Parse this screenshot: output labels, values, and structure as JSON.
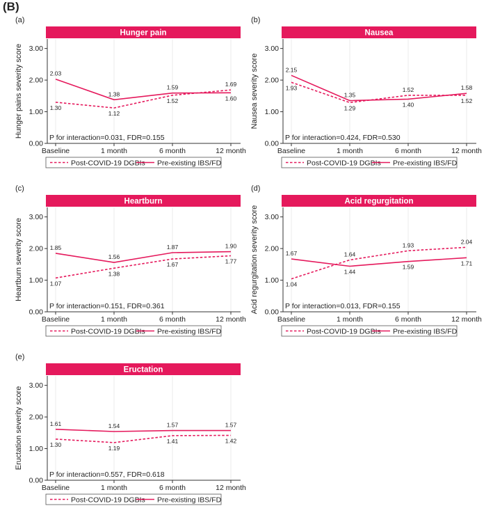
{
  "figure_label": "(B)",
  "legend": {
    "series1": "Post-COVID-19 DGBIs",
    "series2": "Pre-existing IBS/FD"
  },
  "colors": {
    "accent": "#e5195c",
    "grid": "#e6e6e6",
    "axis": "#333333"
  },
  "chart_data": [
    {
      "type": "line",
      "panel": "(a)",
      "title": "Hunger pain",
      "ylabel": "Hunger pains severity score",
      "categories": [
        "Baseline",
        "1 month",
        "6 month",
        "12 month"
      ],
      "yticks": [
        "0.00",
        "1.00",
        "2.00",
        "3.00"
      ],
      "ylim": [
        0,
        3.3
      ],
      "series": [
        {
          "name": "Post-COVID-19 DGBIs",
          "style": "dashed",
          "values": [
            1.3,
            1.12,
            1.52,
            1.69
          ],
          "labels": [
            "1.30",
            "1.12",
            "1.52",
            "1.69"
          ]
        },
        {
          "name": "Pre-existing IBS/FD",
          "style": "solid",
          "values": [
            2.03,
            1.38,
            1.59,
            1.6
          ],
          "labels": [
            "2.03",
            "1.38",
            "1.59",
            "1.60"
          ]
        }
      ],
      "annotation": "P for interaction=0.031, FDR=0.155"
    },
    {
      "type": "line",
      "panel": "(b)",
      "title": "Nausea",
      "ylabel": "Nausea severity score",
      "categories": [
        "Baseline",
        "1 month",
        "6 month",
        "12 month"
      ],
      "yticks": [
        "0.00",
        "1.00",
        "2.00",
        "3.00"
      ],
      "ylim": [
        0,
        3.3
      ],
      "series": [
        {
          "name": "Post-COVID-19 DGBIs",
          "style": "dashed",
          "values": [
            1.93,
            1.29,
            1.52,
            1.52
          ],
          "labels": [
            "1.93",
            "1.29",
            "1.52",
            "1.52"
          ]
        },
        {
          "name": "Pre-existing IBS/FD",
          "style": "solid",
          "values": [
            2.15,
            1.35,
            1.4,
            1.58
          ],
          "labels": [
            "2.15",
            "1.35",
            "1.40",
            "1.58"
          ]
        }
      ],
      "annotation": "P for interaction=0.424, FDR=0.530"
    },
    {
      "type": "line",
      "panel": "(c)",
      "title": "Heartburn",
      "ylabel": "Heartburn severity score",
      "categories": [
        "Baseline",
        "1 month",
        "6 month",
        "12 month"
      ],
      "yticks": [
        "0.00",
        "1.00",
        "2.00",
        "3.00"
      ],
      "ylim": [
        0,
        3.3
      ],
      "series": [
        {
          "name": "Post-COVID-19 DGBIs",
          "style": "dashed",
          "values": [
            1.07,
            1.38,
            1.67,
            1.77
          ],
          "labels": [
            "1.07",
            "1.38",
            "1.67",
            "1.77"
          ]
        },
        {
          "name": "Pre-existing IBS/FD",
          "style": "solid",
          "values": [
            1.85,
            1.56,
            1.87,
            1.9
          ],
          "labels": [
            "1.85",
            "1.56",
            "1.87",
            "1.90"
          ]
        }
      ],
      "annotation": "P for interaction=0.151, FDR=0.361"
    },
    {
      "type": "line",
      "panel": "(d)",
      "title": "Acid regurgitation",
      "ylabel": "Acid regurgitation severity score",
      "categories": [
        "Baseline",
        "1 month",
        "6 month",
        "12 month"
      ],
      "yticks": [
        "0.00",
        "1.00",
        "2.00",
        "3.00"
      ],
      "ylim": [
        0,
        3.3
      ],
      "series": [
        {
          "name": "Post-COVID-19 DGBIs",
          "style": "dashed",
          "values": [
            1.04,
            1.64,
            1.93,
            2.04
          ],
          "labels": [
            "1.04",
            "1.64",
            "1.93",
            "2.04"
          ]
        },
        {
          "name": "Pre-existing IBS/FD",
          "style": "solid",
          "values": [
            1.67,
            1.44,
            1.59,
            1.71
          ],
          "labels": [
            "1.67",
            "1.44",
            "1.59",
            "1.71"
          ]
        }
      ],
      "annotation": "P for interaction=0.013, FDR=0.155"
    },
    {
      "type": "line",
      "panel": "(e)",
      "title": "Eructation",
      "ylabel": "Eructation severity score",
      "categories": [
        "Baseline",
        "1 month",
        "6 month",
        "12 month"
      ],
      "yticks": [
        "0.00",
        "1.00",
        "2.00",
        "3.00"
      ],
      "ylim": [
        0,
        3.3
      ],
      "series": [
        {
          "name": "Post-COVID-19 DGBIs",
          "style": "dashed",
          "values": [
            1.3,
            1.19,
            1.41,
            1.42
          ],
          "labels": [
            "1.30",
            "1.19",
            "1.41",
            "1.42"
          ]
        },
        {
          "name": "Pre-existing IBS/FD",
          "style": "solid",
          "values": [
            1.61,
            1.54,
            1.57,
            1.57
          ],
          "labels": [
            "1.61",
            "1.54",
            "1.57",
            "1.57"
          ]
        }
      ],
      "annotation": "P for interaction=0.557, FDR=0.618"
    }
  ]
}
